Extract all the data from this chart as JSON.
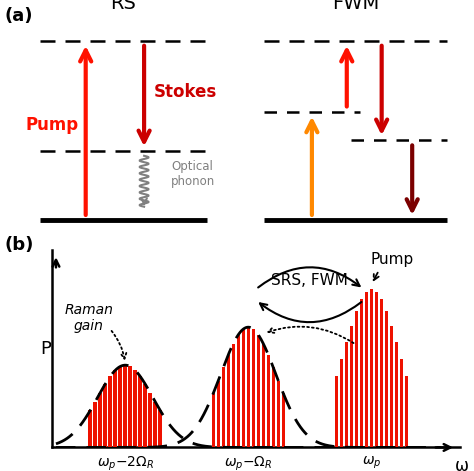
{
  "fig_width": 4.74,
  "fig_height": 4.71,
  "dpi": 100,
  "bg_color": "#ffffff",
  "label_a": "(a)",
  "label_b": "(b)",
  "rs_title": "RS",
  "fwm_title": "FWM",
  "pump_label": "Pump",
  "stokes_label": "Stokes",
  "optical_phonon_label": "Optical\nphonon",
  "pump_color": "#ff1100",
  "stokes_color": "#cc0000",
  "orange_color": "#ff8800",
  "dark_red_color": "#7b0000",
  "raman_gain_label": "Raman\ngain",
  "srs_fwm_label": "SRS, FWM",
  "pump_b_label": "Pump",
  "omega_label": "ω",
  "P_label": "P",
  "xtick1": "$\\omega_p$$-2\\Omega_R$",
  "xtick2": "$\\omega_p$$-\\Omega_R$",
  "xtick3": "$\\omega_p$",
  "bar_color": "#ee1100",
  "c1": 0.18,
  "c2": 0.5,
  "c3": 0.82,
  "gw": 0.072,
  "a1": 0.52,
  "a2": 0.76,
  "a3": 1.0
}
